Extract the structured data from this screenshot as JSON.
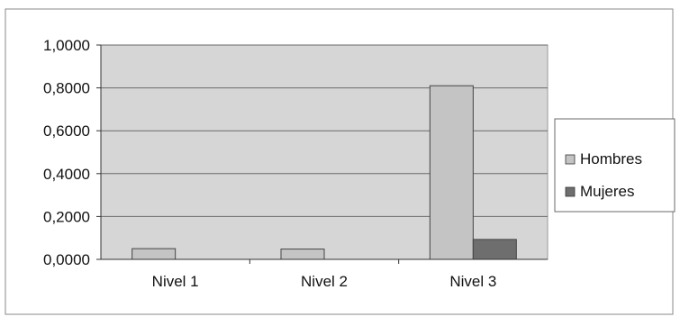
{
  "chart_data": {
    "type": "bar",
    "categories": [
      "Nivel 1",
      "Nivel 2",
      "Nivel 3"
    ],
    "series": [
      {
        "name": "Hombres",
        "values": [
          0.05,
          0.048,
          0.81
        ],
        "color": "#c4c4c4"
      },
      {
        "name": "Mujeres",
        "values": [
          0,
          0,
          0.093
        ],
        "color": "#6e6e6e"
      }
    ],
    "yticks": [
      "1,0000",
      "0,8000",
      "0,6000",
      "0,4000",
      "0,2000",
      "0,0000"
    ],
    "ylim": [
      0,
      1
    ],
    "grid": true,
    "legend_position": "right",
    "plot_background": "#d6d6d6"
  }
}
